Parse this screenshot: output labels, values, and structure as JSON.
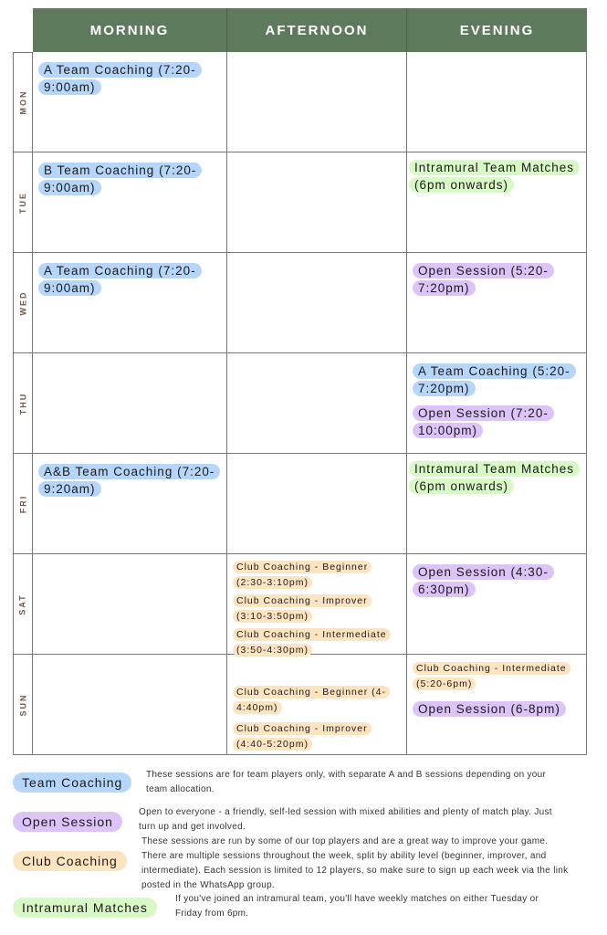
{
  "header": [
    "MORNING",
    "AFTERNOON",
    "EVENING"
  ],
  "colors": {
    "header": "#5e7a5c",
    "team": "#b5d6f8",
    "open": "#dcc4f8",
    "club": "#fde4c1",
    "intra": "#d8f8c6"
  },
  "days": [
    {
      "label": "MON",
      "cells": [
        [
          {
            "type": "team",
            "text": "A Team Coaching (7:20-9:00am)"
          }
        ],
        [],
        []
      ]
    },
    {
      "label": "TUE",
      "cells": [
        [
          {
            "type": "team",
            "text": "B Team Coaching (7:20-9:00am)"
          }
        ],
        [],
        [
          {
            "type": "intra",
            "text": "Intramural Team Matches (6pm onwards)"
          }
        ]
      ]
    },
    {
      "label": "WED",
      "cells": [
        [
          {
            "type": "team",
            "text": "A Team Coaching (7:20-9:00am)"
          }
        ],
        [],
        [
          {
            "type": "open",
            "text": "Open Session (5:20-7:20pm)"
          }
        ]
      ]
    },
    {
      "label": "THU",
      "cells": [
        [],
        [],
        [
          {
            "type": "team",
            "text": "A Team Coaching (5:20-7:20pm)"
          },
          {
            "type": "open",
            "text": "Open Session (7:20-10:00pm)"
          }
        ]
      ]
    },
    {
      "label": "FRI",
      "cells": [
        [
          {
            "type": "team",
            "text": "A&B Team Coaching (7:20-9:20am)"
          }
        ],
        [],
        [
          {
            "type": "intra",
            "text": "Intramural Team Matches (6pm onwards)"
          }
        ]
      ]
    },
    {
      "label": "SAT",
      "cells": [
        [],
        [
          {
            "type": "club",
            "text": "Club Coaching - Beginner (2:30-3:10pm)"
          },
          {
            "type": "club",
            "text": "Club Coaching - Improver (3:10-3:50pm)"
          },
          {
            "type": "club",
            "text": "Club Coaching - Intermediate (3:50-4:30pm)"
          }
        ],
        [
          {
            "type": "open",
            "text": "Open Session (4:30-6:30pm)"
          }
        ]
      ]
    },
    {
      "label": "SUN",
      "cells": [
        [],
        [
          {
            "type": "club",
            "text": "Club Coaching - Beginner (4-4:40pm)"
          },
          {
            "type": "club",
            "text": "Club Coaching - Improver (4:40-5:20pm)"
          }
        ],
        [
          {
            "type": "club",
            "text": "Club Coaching - Intermediate (5:20-6pm)"
          },
          {
            "type": "open",
            "text": "Open Session (6-8pm)"
          }
        ]
      ]
    }
  ],
  "legend": [
    {
      "type": "team",
      "label": "Team Coaching",
      "desc": "These sessions are for team players only, with separate A and B sessions depending on your team allocation."
    },
    {
      "type": "open",
      "label": "Open Session",
      "desc": "Open to everyone - a friendly, self-led session with mixed abilities and plenty of match play. Just turn up and get involved."
    },
    {
      "type": "club",
      "label": "Club Coaching",
      "desc": "These sessions are run by some of our top players and are a great way to improve your game. There are multiple sessions throughout the week, split by ability level (beginner, improver, and intermediate). Each session is limited to 12 players, so make sure to sign up each week via the link posted in the WhatsApp group."
    },
    {
      "type": "intra",
      "label": "Intramural Matches",
      "desc": "If you've joined an intramural team, you'll have weekly matches on either Tuesday or Friday from 6pm."
    }
  ]
}
